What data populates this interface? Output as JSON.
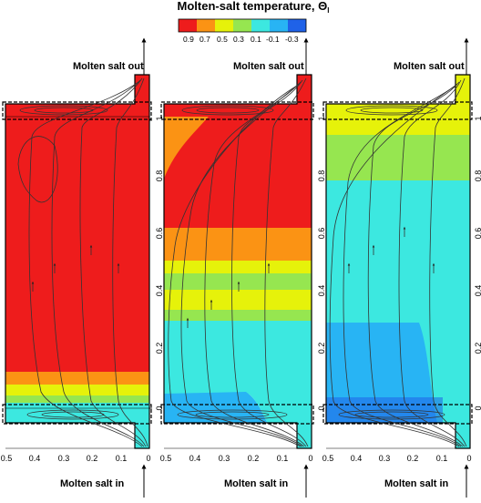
{
  "figure": {
    "colorbar_title": "Molten-salt temperature, Θ",
    "colorbar_subscript": "l",
    "colorbar_labels": [
      "0.9",
      "0.7",
      "0.5",
      "0.3",
      "0.1",
      "-0.1",
      "-0.3"
    ],
    "colors": {
      "red": "#ee1c1c",
      "orange": "#fb9314",
      "yellow": "#e6f20a",
      "lightgreen": "#96e650",
      "cyan": "#3ce8e0",
      "lightblue": "#28b4f4",
      "blue": "#1f62e8"
    },
    "outlet_label": "Molten salt out",
    "inlet_label": "Molten salt in",
    "x_ticks": [
      "0.5",
      "0.4",
      "0.3",
      "0.2",
      "0.1",
      "0"
    ],
    "y_ticks": [
      "0",
      "0.2",
      "0.4",
      "0.6",
      "0.8",
      "1"
    ]
  }
}
